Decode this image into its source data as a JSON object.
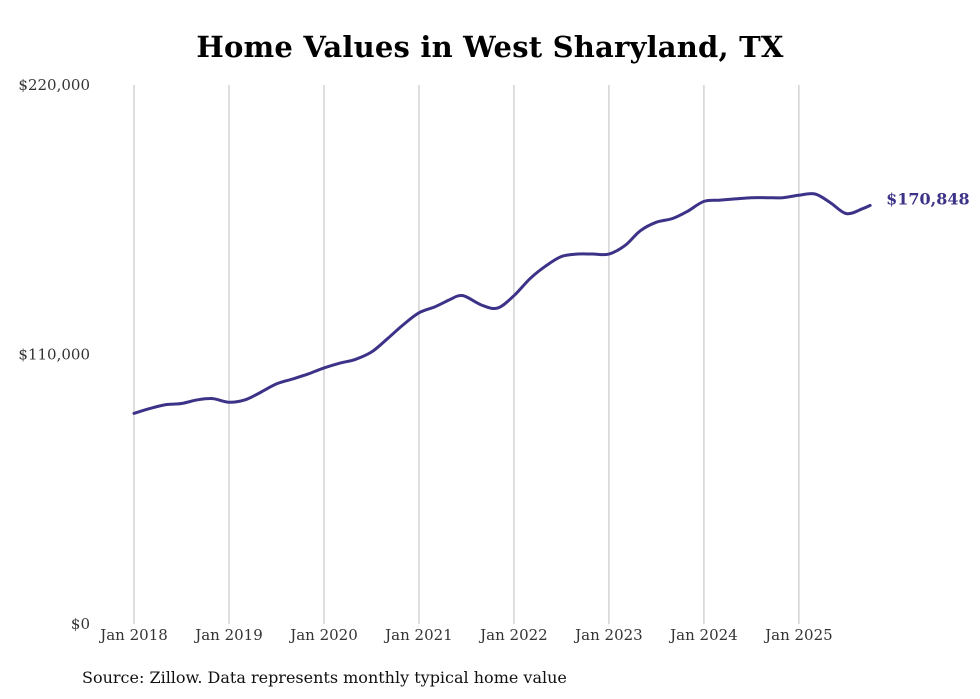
{
  "chart_data": {
    "type": "line",
    "title": "Home Values in West Sharyland, TX",
    "source": "Source: Zillow. Data represents monthly typical home value",
    "xlabel": "",
    "ylabel": "",
    "ylim": [
      0,
      220000
    ],
    "y_ticks": [
      {
        "value": 0,
        "label": "$0"
      },
      {
        "value": 110000,
        "label": "$110,000"
      },
      {
        "value": 220000,
        "label": "$220,000"
      }
    ],
    "x_ticks": [
      {
        "year": 2018,
        "label": "Jan 2018"
      },
      {
        "year": 2019,
        "label": "Jan 2019"
      },
      {
        "year": 2020,
        "label": "Jan 2020"
      },
      {
        "year": 2021,
        "label": "Jan 2021"
      },
      {
        "year": 2022,
        "label": "Jan 2022"
      },
      {
        "year": 2023,
        "label": "Jan 2023"
      },
      {
        "year": 2024,
        "label": "Jan 2024"
      },
      {
        "year": 2025,
        "label": "Jan 2025"
      }
    ],
    "xlim": [
      2018,
      2025.78
    ],
    "grid": "vertical",
    "line_color": "#3c3388",
    "end_label": "$170,848",
    "series": [
      {
        "name": "Typical home value",
        "x": [
          2018.0,
          2018.17,
          2018.33,
          2018.5,
          2018.67,
          2018.83,
          2019.0,
          2019.17,
          2019.33,
          2019.5,
          2019.67,
          2019.83,
          2020.0,
          2020.17,
          2020.33,
          2020.5,
          2020.67,
          2020.83,
          2021.0,
          2021.17,
          2021.33,
          2021.42,
          2021.5,
          2021.67,
          2021.83,
          2022.0,
          2022.17,
          2022.33,
          2022.5,
          2022.67,
          2022.83,
          2023.0,
          2023.17,
          2023.33,
          2023.5,
          2023.67,
          2023.83,
          2024.0,
          2024.17,
          2024.33,
          2024.5,
          2024.67,
          2024.83,
          2025.0,
          2025.17,
          2025.33,
          2025.5,
          2025.67,
          2025.75
        ],
        "values": [
          86000,
          88000,
          89500,
          90000,
          91500,
          92000,
          90500,
          91500,
          94500,
          98000,
          100000,
          102000,
          104500,
          106500,
          108000,
          111000,
          116500,
          122000,
          127000,
          129500,
          132500,
          134000,
          133500,
          130000,
          129000,
          134000,
          141000,
          146000,
          150000,
          151000,
          151000,
          151000,
          154500,
          160500,
          164000,
          165500,
          168500,
          172500,
          173000,
          173500,
          174000,
          174000,
          174000,
          175000,
          175500,
          172000,
          167500,
          169500,
          170848
        ]
      }
    ]
  }
}
